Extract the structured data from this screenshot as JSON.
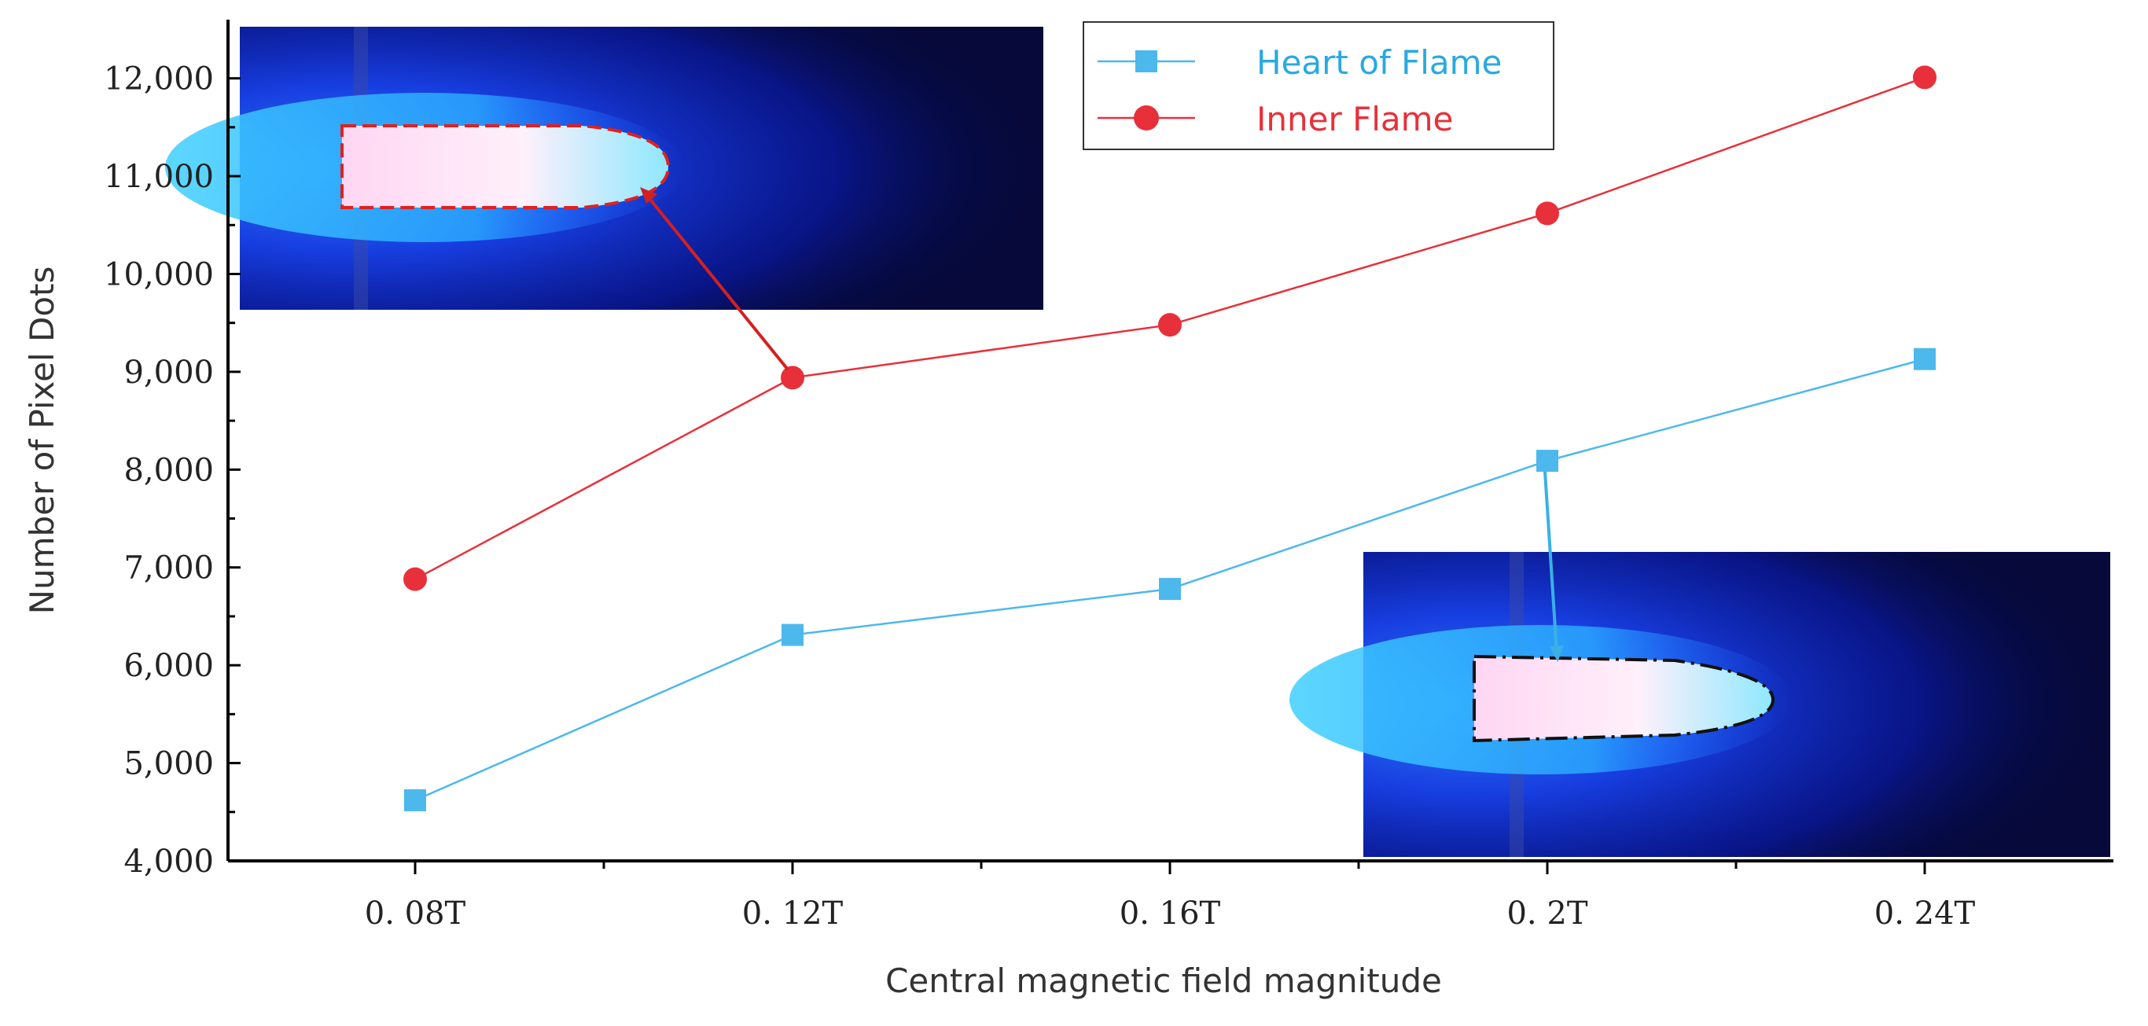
{
  "chart_data": {
    "type": "line",
    "title": "",
    "xlabel": "Central magnetic field magnitude",
    "ylabel": "Number of Pixel Dots",
    "categories": [
      "0. 08T",
      "0. 12T",
      "0. 16T",
      "0. 2T",
      "0. 24T"
    ],
    "yticks": [
      "4,000",
      "5,000",
      "6,000",
      "7,000",
      "8,000",
      "9,000",
      "10,000",
      "11,000",
      "12,000"
    ],
    "ylim": [
      4000,
      12600
    ],
    "grid": false,
    "legend_position": "top-center",
    "series": [
      {
        "name": "Heart of Flame",
        "marker": "square",
        "color": "#4db8ec",
        "values": [
          4620,
          6310,
          6780,
          8090,
          9130
        ]
      },
      {
        "name": "Inner Flame",
        "marker": "circle",
        "color": "#e8303a",
        "values": [
          6880,
          8940,
          9480,
          10620,
          12010
        ]
      }
    ],
    "annotations": [
      {
        "type": "flame-photo",
        "location": "top-left",
        "outline_color": "#d42020",
        "points_to": "Inner Flame at 0. 12T"
      },
      {
        "type": "flame-photo",
        "location": "bottom-right",
        "outline_color": "#111111",
        "points_to": "Heart of Flame at 0. 2T"
      }
    ]
  }
}
